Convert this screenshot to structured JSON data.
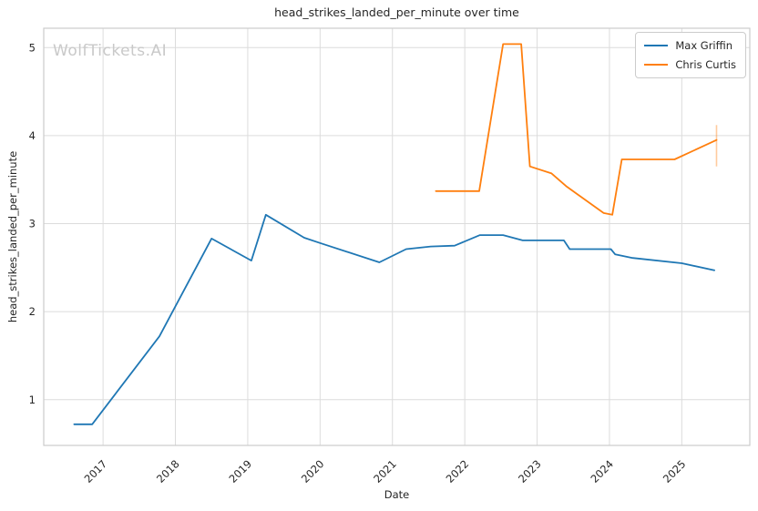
{
  "chart_data": {
    "type": "line",
    "title": "head_strikes_landed_per_minute over time",
    "xlabel": "Date",
    "ylabel": "head_strikes_landed_per_minute",
    "watermark": "WolfTickets.AI",
    "x_domain": [
      2016.18,
      2025.94
    ],
    "y_domain": [
      0.48,
      5.22
    ],
    "x_ticks": [
      "2017",
      "2018",
      "2019",
      "2020",
      "2021",
      "2022",
      "2023",
      "2024",
      "2025"
    ],
    "x_tick_values": [
      2017,
      2018,
      2019,
      2020,
      2021,
      2022,
      2023,
      2024,
      2025
    ],
    "y_ticks": [
      "1",
      "2",
      "3",
      "4",
      "5"
    ],
    "y_tick_values": [
      1,
      2,
      3,
      4,
      5
    ],
    "grid": true,
    "legend_position": "upper right",
    "colors": {
      "grid": "#dcdcdc",
      "spine": "#cccccc",
      "tick_label": "#262626",
      "watermark": "#c9c9c9",
      "background": "#ffffff"
    },
    "series": [
      {
        "name": "Max Griffin",
        "color": "#1f77b4",
        "x": [
          2016.6,
          2016.85,
          2017.78,
          2018.5,
          2019.05,
          2019.25,
          2019.78,
          2020.0,
          2020.82,
          2021.19,
          2021.53,
          2021.86,
          2022.21,
          2022.53,
          2022.8,
          2023.37,
          2023.45,
          2024.02,
          2024.08,
          2024.32,
          2025.0,
          2025.45
        ],
        "y": [
          0.72,
          0.72,
          1.72,
          2.83,
          2.58,
          3.1,
          2.84,
          2.78,
          2.56,
          2.71,
          2.74,
          2.75,
          2.87,
          2.87,
          2.81,
          2.81,
          2.71,
          2.71,
          2.65,
          2.61,
          2.55,
          2.47
        ]
      },
      {
        "name": "Chris Curtis",
        "color": "#ff7f0e",
        "x": [
          2021.6,
          2022.2,
          2022.53,
          2022.78,
          2022.9,
          2023.2,
          2023.41,
          2023.92,
          2024.04,
          2024.17,
          2024.9,
          2025.48
        ],
        "y": [
          3.37,
          3.37,
          5.04,
          5.04,
          3.65,
          3.57,
          3.42,
          3.12,
          3.1,
          3.73,
          3.73,
          3.95
        ],
        "error_bar": {
          "x": 2025.48,
          "y_low": 3.65,
          "y_high": 4.12
        }
      }
    ]
  }
}
